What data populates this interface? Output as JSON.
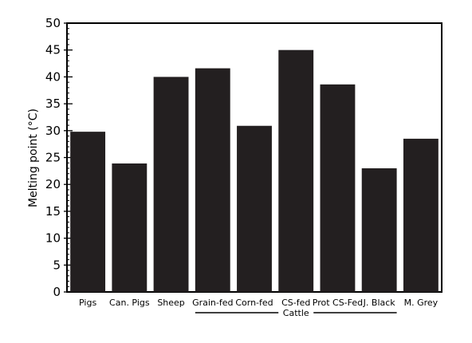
{
  "chart_data": {
    "type": "bar",
    "title": "",
    "xlabel": "",
    "ylabel": "Melting point (°C)",
    "ylim": [
      0,
      50
    ],
    "yticks": [
      0,
      5,
      10,
      15,
      20,
      25,
      30,
      35,
      40,
      45,
      50
    ],
    "grid": false,
    "bar_color": "#231f20",
    "categories": [
      "Pigs",
      "Can. Pigs",
      "Sheep",
      "Grain-fed",
      "Corn-fed",
      "CS-fed",
      "Prot CS-Fed",
      "J. Black",
      "M. Grey"
    ],
    "values": [
      29.8,
      23.9,
      40.0,
      41.6,
      30.9,
      45.0,
      38.6,
      23.0,
      28.5
    ],
    "group": {
      "label": "Cattle",
      "categories": [
        "Grain-fed",
        "Corn-fed",
        "CS-fed",
        "Prot CS-Fed",
        "J. Black"
      ]
    }
  }
}
